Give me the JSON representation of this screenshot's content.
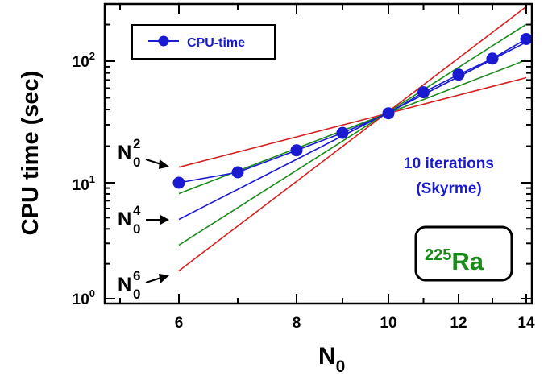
{
  "chart_data": {
    "type": "scatter",
    "xlabel": "N",
    "xlabel_sub": "0",
    "ylabel": "CPU time (sec)",
    "x_scale": "linear",
    "y_scale": "log",
    "xlim": [
      4.95,
      14.55
    ],
    "ylim": [
      0.82,
      280
    ],
    "x_ticks": [
      6,
      8,
      10,
      12,
      14
    ],
    "x_tick_labels": [
      "6",
      "8",
      "10",
      "12",
      "14"
    ],
    "y_ticks": [
      1,
      10,
      100
    ],
    "y_tick_labels": [
      {
        "base": "10",
        "exp": "0"
      },
      {
        "base": "10",
        "exp": "1"
      },
      {
        "base": "10",
        "exp": "2"
      }
    ],
    "series": [
      {
        "name": "CPU-time",
        "kind": "points",
        "color": "#1a1ad0",
        "x": [
          6,
          7,
          8,
          9,
          10,
          11,
          12,
          13,
          14
        ],
        "y": [
          10.0,
          12.2,
          18.5,
          25.7,
          37.3,
          55.5,
          77.5,
          105,
          152
        ]
      }
    ],
    "reference_lines": [
      {
        "exponent": 2,
        "color": "#d42020",
        "anchor_x": 10,
        "anchor_y": 37.3,
        "x_range": [
          6,
          14
        ]
      },
      {
        "exponent": 3,
        "color": "#1a8a1a",
        "anchor_x": 10,
        "anchor_y": 37.3,
        "x_range": [
          6,
          14
        ]
      },
      {
        "exponent": 4,
        "color": "#1a1ad0",
        "anchor_x": 10,
        "anchor_y": 37.3,
        "x_range": [
          6,
          14
        ]
      },
      {
        "exponent": 5,
        "color": "#1a8a1a",
        "anchor_x": 10,
        "anchor_y": 37.3,
        "x_range": [
          6,
          14
        ]
      },
      {
        "exponent": 6,
        "color": "#d42020",
        "anchor_x": 10,
        "anchor_y": 37.3,
        "x_range": [
          6,
          14
        ]
      }
    ],
    "legend": {
      "label": "CPU-time",
      "position": "top-left"
    },
    "power_labels": [
      {
        "base": "N",
        "sub": "0",
        "exp": "2"
      },
      {
        "base": "N",
        "sub": "0",
        "exp": "4"
      },
      {
        "base": "N",
        "sub": "0",
        "exp": "6"
      }
    ],
    "annotation": {
      "line1": "10 iterations",
      "line2": "(Skyrme)"
    },
    "nucleus": {
      "mass": "225",
      "symbol": "Ra",
      "color": "#1a8a1a"
    }
  }
}
